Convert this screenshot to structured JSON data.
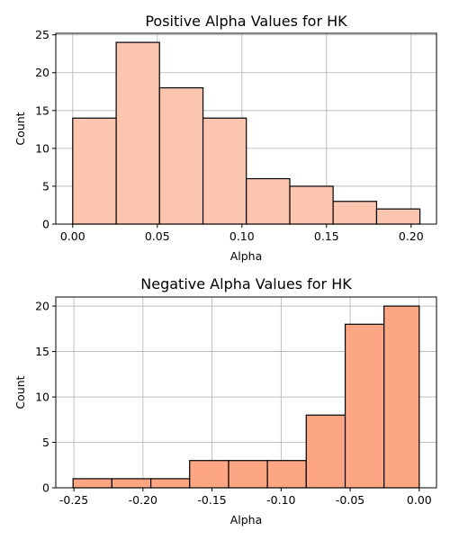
{
  "colors": {
    "positive_bar": "#fcc5b0",
    "negative_bar": "#fca683",
    "bar_edge": "#000000",
    "grid": "#b0b0b0"
  },
  "chart_data": [
    {
      "type": "histogram",
      "title": "Positive Alpha Values for HK",
      "xlabel": "Alpha",
      "ylabel": "Count",
      "grid": true,
      "bin_edges": [
        0.0,
        0.0257,
        0.0513,
        0.077,
        0.1026,
        0.1283,
        0.1539,
        0.1796,
        0.2052
      ],
      "counts": [
        14,
        24,
        18,
        14,
        6,
        5,
        3,
        2
      ],
      "xlim": [
        -0.01,
        0.215
      ],
      "ylim": [
        0,
        25.2
      ],
      "xticks": [
        0.0,
        0.05,
        0.1,
        0.15,
        0.2
      ],
      "xtick_labels": [
        "0.00",
        "0.05",
        "0.10",
        "0.15",
        "0.20"
      ],
      "yticks": [
        0,
        5,
        10,
        15,
        20,
        25
      ],
      "ytick_labels": [
        "0",
        "5",
        "10",
        "15",
        "20",
        "25"
      ]
    },
    {
      "type": "histogram",
      "title": "Negative Alpha Values for HK",
      "xlabel": "Alpha",
      "ylabel": "Count",
      "grid": true,
      "bin_edges": [
        -0.2506,
        -0.2225,
        -0.1943,
        -0.1662,
        -0.138,
        -0.1099,
        -0.0818,
        -0.0536,
        -0.0255,
        0.0
      ],
      "counts": [
        1,
        1,
        1,
        3,
        3,
        3,
        8,
        18,
        20
      ],
      "xlim": [
        -0.2631,
        0.0125
      ],
      "ylim": [
        0,
        21
      ],
      "xticks": [
        -0.25,
        -0.2,
        -0.15,
        -0.1,
        -0.05,
        0.0
      ],
      "xtick_labels": [
        "-0.25",
        "-0.20",
        "-0.15",
        "-0.10",
        "-0.05",
        "0.00"
      ],
      "yticks": [
        0,
        5,
        10,
        15,
        20
      ],
      "ytick_labels": [
        "0",
        "5",
        "10",
        "15",
        "20"
      ]
    }
  ]
}
